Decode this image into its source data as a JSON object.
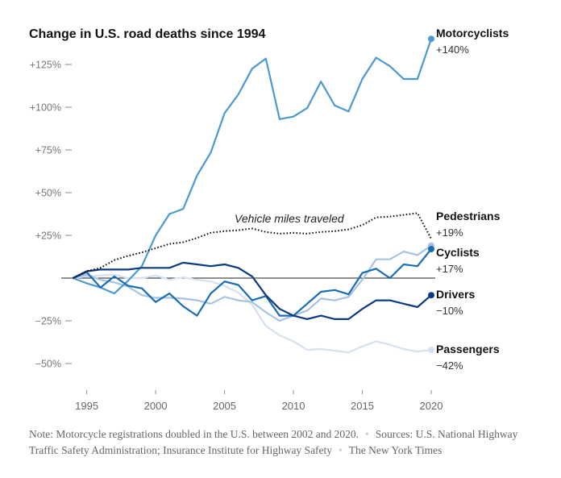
{
  "chart_data": {
    "type": "line",
    "title": "Change in U.S. road deaths since 1994",
    "xlabel": "",
    "ylabel": "",
    "xlim": [
      1994,
      2020
    ],
    "ylim": [
      -62,
      145
    ],
    "x_ticks": [
      1995,
      2000,
      2005,
      2010,
      2015,
      2020
    ],
    "x_tick_labels": [
      "1995",
      "2000",
      "2005",
      "2010",
      "2015",
      "2020"
    ],
    "y_ticks": [
      125,
      100,
      75,
      50,
      25,
      0,
      -25,
      -50
    ],
    "y_tick_labels": [
      "+125%",
      "+100%",
      "+75%",
      "+50%",
      "+25%",
      "",
      "−25%",
      "−50%"
    ],
    "grid": false,
    "zero_line": true,
    "x": [
      1994,
      1995,
      1996,
      1997,
      1998,
      1999,
      2000,
      2001,
      2002,
      2003,
      2004,
      2005,
      2006,
      2007,
      2008,
      2009,
      2010,
      2011,
      2012,
      2013,
      2014,
      2015,
      2016,
      2017,
      2018,
      2019,
      2020
    ],
    "series": [
      {
        "name": "Passengers",
        "label_value": "−42%",
        "color": "#d3e1f1",
        "style": "solid",
        "values": [
          0,
          1,
          1.5,
          2,
          0,
          0,
          1.5,
          -1,
          0.5,
          -1,
          -2,
          -4.5,
          -8.5,
          -15.5,
          -28,
          -33.5,
          -37,
          -42,
          -41.5,
          -42.5,
          -43.5,
          -40,
          -37,
          -39,
          -41.5,
          -43,
          -42
        ]
      },
      {
        "name": "Pedestrians",
        "label_value": "+19%",
        "color": "#a6c3e4",
        "style": "solid",
        "values": [
          0,
          2,
          -1,
          -2.5,
          -5,
          -10,
          -11.5,
          -11.5,
          -12,
          -13,
          -15,
          -11,
          -13,
          -14,
          -20,
          -25,
          -22,
          -19,
          -12,
          -13,
          -11,
          -1,
          11,
          11,
          15.5,
          13.5,
          19
        ]
      },
      {
        "name": "Motorcyclists",
        "label_value": "+140%",
        "color": "#4a9ad1",
        "style": "solid",
        "values": [
          0,
          -3,
          -5.5,
          -9,
          -1.5,
          7,
          25,
          37.5,
          40.5,
          60,
          73.5,
          96.5,
          107.5,
          122.5,
          128.5,
          93,
          94.5,
          99.5,
          115,
          101,
          97.5,
          116.5,
          129,
          124,
          116.5,
          116.5,
          140
        ]
      },
      {
        "name": "Cyclists",
        "label_value": "+17%",
        "color": "#196db5",
        "style": "solid",
        "values": [
          0,
          3.5,
          -5.5,
          1,
          -4.5,
          -6,
          -14,
          -9,
          -16.5,
          -22,
          -9,
          -2,
          -4,
          -13,
          -10.5,
          -22,
          -22,
          -15,
          -8,
          -7,
          -9.5,
          3,
          5.5,
          0,
          8,
          7,
          17
        ]
      },
      {
        "name": "Drivers",
        "label_value": "−10%",
        "color": "#0c3a82",
        "style": "solid",
        "values": [
          0,
          4,
          5,
          5,
          5,
          6,
          6,
          6,
          9,
          8,
          7,
          8,
          6,
          1,
          -10,
          -18,
          -22,
          -24,
          -22,
          -24,
          -24,
          -18,
          -13,
          -13,
          -15,
          -17,
          -10
        ]
      },
      {
        "name": "Vehicle miles traveled",
        "label_value": "",
        "color": "#111111",
        "style": "dotted",
        "values": [
          0,
          4,
          6,
          10.5,
          13,
          15,
          17.5,
          20,
          21,
          23.5,
          26.5,
          27.5,
          28,
          29,
          27,
          26,
          26.5,
          26,
          27,
          27.5,
          28.5,
          31,
          35.5,
          36,
          37,
          38,
          23
        ]
      }
    ],
    "annotations": [
      {
        "text": "Vehicle miles traveled",
        "series": "Vehicle miles traveled"
      }
    ],
    "legend": "direct-labels-right"
  },
  "footer": {
    "note": "Note: Motorcycle registrations doubled in the U.S. between 2002 and 2020.",
    "sources": "Sources: U.S. National Highway Traffic Safety Administration; Insurance Institute for Highway Safety",
    "credit": "The New York Times",
    "separator": "•"
  }
}
